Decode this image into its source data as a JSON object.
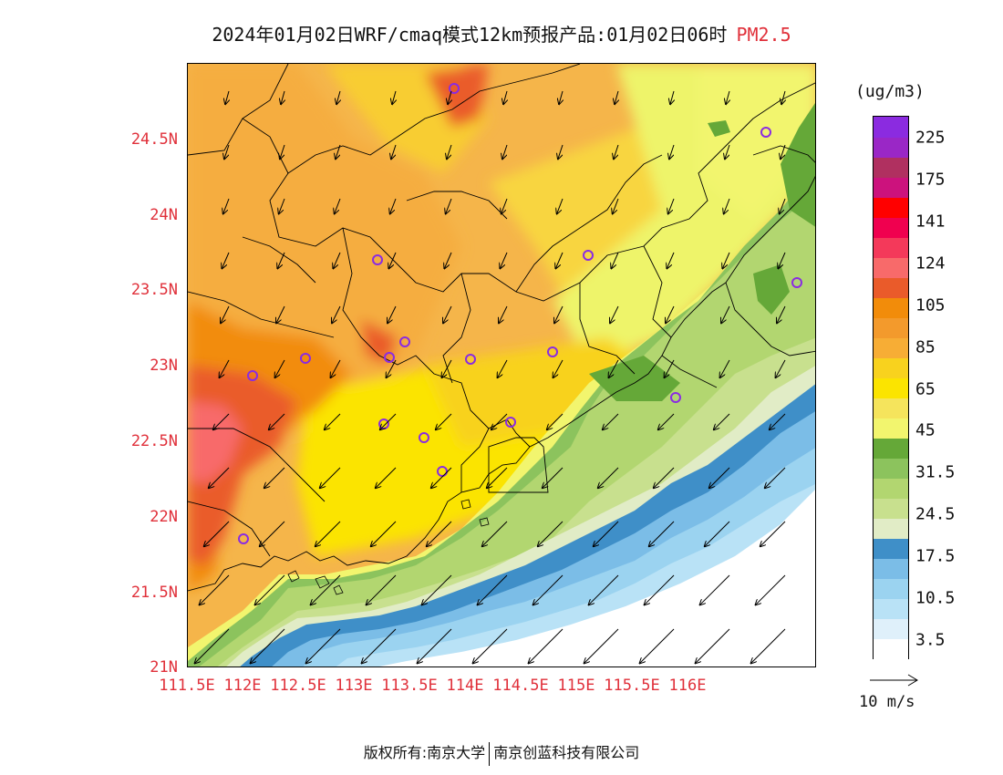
{
  "title": {
    "main": "2024年01月02日WRF/cmaq模式12km预报产品:01月02日06时",
    "species": "PM2.5"
  },
  "map": {
    "lat_labels": [
      "21N",
      "21.5N",
      "22N",
      "22.5N",
      "23N",
      "23.5N",
      "24N",
      "24.5N"
    ],
    "lon_labels": [
      "111.5E",
      "112E",
      "112.5E",
      "113E",
      "113.5E",
      "114E",
      "114.5E",
      "115E",
      "115.5E",
      "116E"
    ],
    "station_marker": "purple-circle",
    "wind_vector_icon": "arrow-icon"
  },
  "legend": {
    "units": "(ug/m3)",
    "colors": [
      "#ffffff",
      "#dff0fa",
      "#b9e2f6",
      "#9bd3f0",
      "#7bbde7",
      "#3f8fc8",
      "#e1ecc6",
      "#c8e08e",
      "#b2d670",
      "#8cc35d",
      "#65a838",
      "#f2f56e",
      "#f5e45c",
      "#fbe400",
      "#f8d21e",
      "#f7ad35",
      "#f39a2c",
      "#f28c0a",
      "#ea5b2a",
      "#f86a6a",
      "#f4395a",
      "#f0004f",
      "#ff0000",
      "#cc127d",
      "#b03060",
      "#9a27c6",
      "#8b2be0"
    ],
    "labels": [
      "3.5",
      "10.5",
      "17.5",
      "24.5",
      "31.5",
      "45",
      "65",
      "85",
      "105",
      "124",
      "141",
      "175",
      "225"
    ],
    "ref_vector_label": "10 m/s"
  },
  "footer": {
    "left": "版权所有:南京大学",
    "right": "南京创蓝科技有限公司"
  }
}
